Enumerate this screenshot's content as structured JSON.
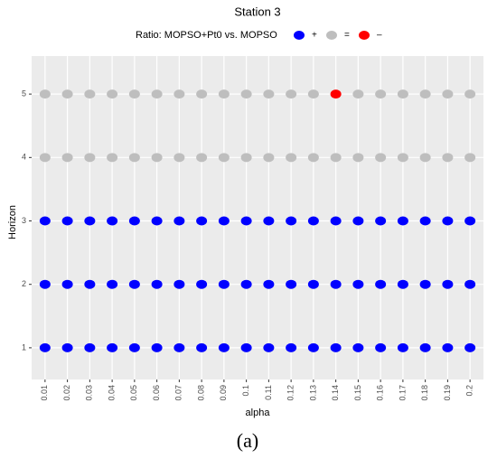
{
  "chart_data": {
    "type": "scatter",
    "title": "Station 3",
    "legend_title": "Ratio: MOPSO+Pt0 vs. MOPSO",
    "x_label": "alpha",
    "y_label": "Horizon",
    "caption": "(a)",
    "xlim": [
      0.004,
      0.206
    ],
    "xticks": [
      0.01,
      0.02,
      0.03,
      0.04,
      0.05,
      0.06,
      0.07,
      0.08,
      0.09,
      0.1,
      0.11,
      0.12,
      0.13,
      0.14,
      0.15,
      0.16,
      0.17,
      0.18,
      0.19,
      0.2
    ],
    "ylim": [
      0.5,
      5.6
    ],
    "yticks": [
      1,
      2,
      3,
      4,
      5
    ],
    "grid": true,
    "series": [
      {
        "name": "+",
        "color": "#0000ff",
        "x": [
          0.01,
          0.02,
          0.03,
          0.04,
          0.05,
          0.06,
          0.07,
          0.08,
          0.09,
          0.1,
          0.11,
          0.12,
          0.13,
          0.14,
          0.15,
          0.16,
          0.17,
          0.18,
          0.19,
          0.2,
          0.01,
          0.02,
          0.03,
          0.04,
          0.05,
          0.06,
          0.07,
          0.08,
          0.09,
          0.1,
          0.11,
          0.12,
          0.13,
          0.14,
          0.15,
          0.16,
          0.17,
          0.18,
          0.19,
          0.2,
          0.01,
          0.02,
          0.03,
          0.04,
          0.05,
          0.06,
          0.07,
          0.08,
          0.09,
          0.1,
          0.11,
          0.12,
          0.13,
          0.14,
          0.15,
          0.16,
          0.17,
          0.18,
          0.19,
          0.2
        ],
        "values": [
          1,
          1,
          1,
          1,
          1,
          1,
          1,
          1,
          1,
          1,
          1,
          1,
          1,
          1,
          1,
          1,
          1,
          1,
          1,
          1,
          2,
          2,
          2,
          2,
          2,
          2,
          2,
          2,
          2,
          2,
          2,
          2,
          2,
          2,
          2,
          2,
          2,
          2,
          2,
          2,
          3,
          3,
          3,
          3,
          3,
          3,
          3,
          3,
          3,
          3,
          3,
          3,
          3,
          3,
          3,
          3,
          3,
          3,
          3,
          3
        ]
      },
      {
        "name": "=",
        "color": "#bebebe",
        "x": [
          0.01,
          0.02,
          0.03,
          0.04,
          0.05,
          0.06,
          0.07,
          0.08,
          0.09,
          0.1,
          0.11,
          0.12,
          0.13,
          0.14,
          0.15,
          0.16,
          0.17,
          0.18,
          0.19,
          0.2,
          0.01,
          0.02,
          0.03,
          0.04,
          0.05,
          0.06,
          0.07,
          0.08,
          0.09,
          0.1,
          0.11,
          0.12,
          0.13,
          0.15,
          0.16,
          0.17,
          0.18,
          0.19,
          0.2
        ],
        "values": [
          4,
          4,
          4,
          4,
          4,
          4,
          4,
          4,
          4,
          4,
          4,
          4,
          4,
          4,
          4,
          4,
          4,
          4,
          4,
          4,
          5,
          5,
          5,
          5,
          5,
          5,
          5,
          5,
          5,
          5,
          5,
          5,
          5,
          5,
          5,
          5,
          5,
          5,
          5
        ]
      },
      {
        "name": "–",
        "color": "#ff0000",
        "x": [
          0.14
        ],
        "values": [
          5
        ]
      }
    ]
  }
}
